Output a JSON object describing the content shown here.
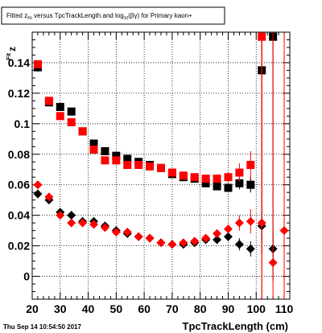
{
  "title": {
    "prefix": "Fitted  z",
    "prefix_sub": "Fit",
    "middle": " versus TpcTrackLength and log",
    "middle_sub": "10",
    "suffix": "(βγ) for Primary kaon+"
  },
  "timestamp": "Thu Sep 14 10:54:50 2017",
  "chart_data": {
    "type": "scatter",
    "xlabel": "TpcTrackLength (cm)",
    "ylabel": "z",
    "ylabel_sub": "Fit",
    "xlim": [
      20,
      112
    ],
    "ylim": [
      -0.015,
      0.16
    ],
    "grid": true,
    "x_ticks": [
      20,
      30,
      40,
      50,
      60,
      70,
      80,
      90,
      100,
      110
    ],
    "x_tick_labels": [
      "20",
      "30",
      "40",
      "50",
      "60",
      "70",
      "80",
      "90",
      "100",
      "110"
    ],
    "y_ticks": [
      0,
      0.02,
      0.04,
      0.06,
      0.08,
      0.1,
      0.12,
      0.14
    ],
    "y_tick_labels": [
      "0",
      "0.02",
      "0.04",
      "0.06",
      "0.08",
      "0.1",
      "0.12",
      "0.14"
    ],
    "series": [
      {
        "marker": "square",
        "color": "#000000",
        "x": [
          22,
          26,
          30,
          34,
          38,
          42,
          46,
          50,
          54,
          58,
          62,
          66,
          70,
          74,
          78,
          82,
          86,
          90,
          94,
          98,
          102,
          106
        ],
        "y": [
          0.137,
          0.114,
          0.111,
          0.108,
          0.095,
          0.087,
          0.082,
          0.079,
          0.077,
          0.075,
          0.073,
          0.071,
          0.067,
          0.065,
          0.064,
          0.061,
          0.059,
          0.058,
          0.061,
          0.06,
          0.135,
          0.157
        ],
        "err": [
          0.003,
          0.002,
          0.002,
          0.002,
          0.002,
          0.002,
          0.002,
          0.002,
          0.002,
          0.002,
          0.002,
          0.002,
          0.002,
          0.002,
          0.002,
          0.002,
          0.002,
          0.003,
          0.004,
          0.005,
          0.12,
          0.16
        ]
      },
      {
        "marker": "square",
        "color": "#ff0000",
        "x": [
          22,
          26,
          30,
          34,
          38,
          42,
          46,
          50,
          54,
          58,
          62,
          66,
          70,
          74,
          78,
          82,
          86,
          90,
          94,
          98,
          102
        ],
        "y": [
          0.139,
          0.115,
          0.105,
          0.101,
          0.095,
          0.083,
          0.076,
          0.076,
          0.073,
          0.073,
          0.072,
          0.071,
          0.068,
          0.066,
          0.065,
          0.064,
          0.064,
          0.065,
          0.068,
          0.073,
          0.157
        ],
        "err": [
          0.002,
          0.002,
          0.002,
          0.002,
          0.002,
          0.002,
          0.002,
          0.002,
          0.002,
          0.002,
          0.002,
          0.002,
          0.002,
          0.002,
          0.002,
          0.002,
          0.002,
          0.003,
          0.006,
          0.009,
          0.2
        ]
      },
      {
        "marker": "diamond",
        "color": "#000000",
        "x": [
          22,
          26,
          30,
          34,
          38,
          42,
          46,
          50,
          54,
          58,
          62,
          66,
          70,
          74,
          78,
          82,
          86,
          90,
          94,
          98,
          102,
          106
        ],
        "y": [
          0.054,
          0.05,
          0.042,
          0.04,
          0.036,
          0.036,
          0.033,
          0.03,
          0.028,
          0.026,
          0.025,
          0.022,
          0.021,
          0.021,
          0.022,
          0.024,
          0.024,
          0.026,
          0.021,
          0.018,
          0.033,
          0.018
        ],
        "err": [
          0.002,
          0.002,
          0.002,
          0.002,
          0.002,
          0.002,
          0.002,
          0.002,
          0.002,
          0.002,
          0.002,
          0.002,
          0.002,
          0.002,
          0.002,
          0.002,
          0.002,
          0.003,
          0.004,
          0.005,
          0.01,
          0.012
        ]
      },
      {
        "marker": "diamond",
        "color": "#ff0000",
        "x": [
          22,
          26,
          30,
          34,
          38,
          42,
          46,
          50,
          54,
          58,
          62,
          66,
          70,
          74,
          78,
          82,
          86,
          90,
          94,
          98,
          102,
          106,
          110
        ],
        "y": [
          0.06,
          0.052,
          0.04,
          0.035,
          0.035,
          0.034,
          0.032,
          0.029,
          0.029,
          0.026,
          0.025,
          0.022,
          0.021,
          0.022,
          0.023,
          0.025,
          0.028,
          0.031,
          0.035,
          0.036,
          0.035,
          0.009,
          0.03
        ],
        "err": [
          0.002,
          0.002,
          0.002,
          0.002,
          0.002,
          0.002,
          0.002,
          0.002,
          0.002,
          0.002,
          0.002,
          0.002,
          0.002,
          0.002,
          0.002,
          0.002,
          0.002,
          0.003,
          0.005,
          0.008,
          0.2,
          0.2,
          0.2
        ]
      }
    ]
  }
}
